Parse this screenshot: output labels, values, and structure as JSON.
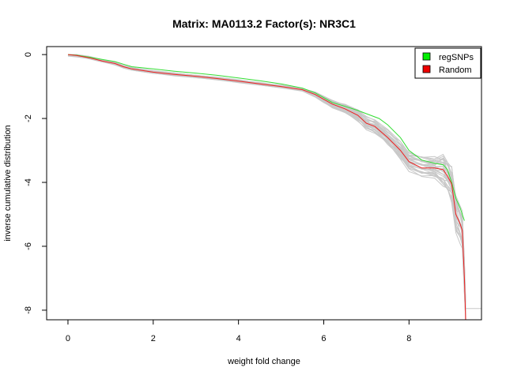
{
  "chart_data": {
    "type": "line",
    "title": "Matrix: MA0113.2 Factor(s): NR3C1",
    "xlabel": "weight fold change",
    "ylabel": "inverse cumulative distribution",
    "xlim": [
      -0.5,
      9.7
    ],
    "ylim": [
      -8.3,
      0.25
    ],
    "x_ticks": [
      0,
      2,
      4,
      6,
      8
    ],
    "y_ticks": [
      0,
      -2,
      -4,
      -6,
      -8
    ],
    "grid": false,
    "legend": {
      "position": "top-right",
      "entries": [
        {
          "label": "regSNPs",
          "color": "#00ee00"
        },
        {
          "label": "Random",
          "color": "#ee0000"
        }
      ]
    },
    "series": [
      {
        "name": "regSNPs",
        "color": "#33dd33",
        "x": [
          0,
          0.2,
          0.5,
          0.8,
          1.1,
          1.3,
          1.5,
          2.0,
          2.5,
          3.0,
          3.5,
          4.0,
          4.5,
          5.0,
          5.5,
          5.8,
          6.0,
          6.2,
          6.5,
          6.8,
          7.0,
          7.3,
          7.5,
          7.8,
          8.0,
          8.3,
          8.6,
          8.8,
          8.9,
          9.0,
          9.1,
          9.2,
          9.3
        ],
        "y": [
          0,
          -0.02,
          -0.08,
          -0.15,
          -0.22,
          -0.3,
          -0.38,
          -0.45,
          -0.52,
          -0.58,
          -0.65,
          -0.73,
          -0.82,
          -0.92,
          -1.05,
          -1.2,
          -1.35,
          -1.5,
          -1.62,
          -1.75,
          -1.85,
          -2.0,
          -2.2,
          -2.6,
          -3.0,
          -3.3,
          -3.4,
          -3.45,
          -3.6,
          -4.0,
          -4.5,
          -4.8,
          -5.2
        ]
      },
      {
        "name": "Random",
        "color": "#ee2020",
        "x": [
          0,
          0.2,
          0.5,
          0.8,
          1.1,
          1.3,
          1.5,
          2.0,
          2.5,
          3.0,
          3.5,
          4.0,
          4.5,
          5.0,
          5.5,
          5.8,
          6.0,
          6.2,
          6.5,
          6.8,
          7.0,
          7.2,
          7.5,
          7.8,
          8.0,
          8.3,
          8.6,
          8.8,
          8.9,
          9.0,
          9.1,
          9.2,
          9.25,
          9.3,
          9.33
        ],
        "y": [
          0,
          -0.03,
          -0.1,
          -0.2,
          -0.28,
          -0.38,
          -0.45,
          -0.55,
          -0.62,
          -0.68,
          -0.75,
          -0.83,
          -0.92,
          -1.0,
          -1.1,
          -1.25,
          -1.4,
          -1.55,
          -1.7,
          -1.9,
          -2.15,
          -2.25,
          -2.6,
          -3.0,
          -3.35,
          -3.55,
          -3.55,
          -3.6,
          -3.8,
          -4.05,
          -5.0,
          -5.3,
          -5.5,
          -7.0,
          -8.3
        ]
      }
    ]
  }
}
